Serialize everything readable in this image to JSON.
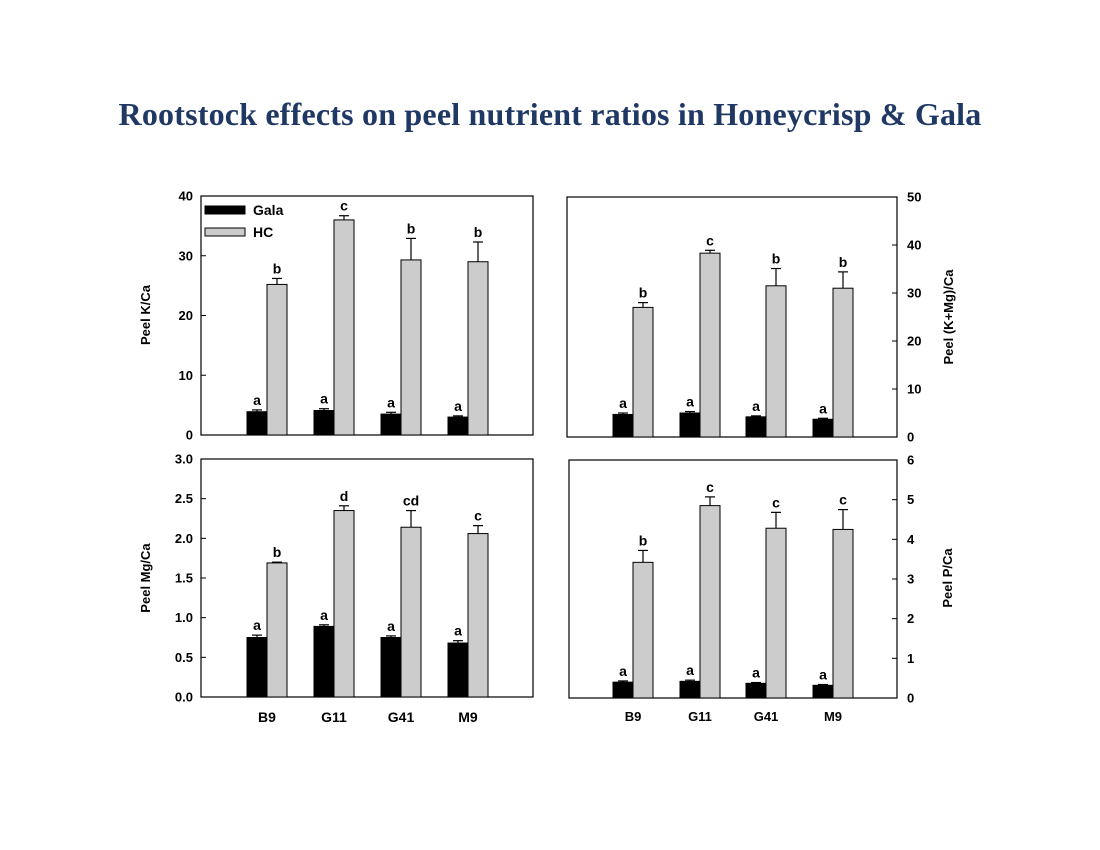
{
  "slide": {
    "title": "Rootstock effects on peel nutrient ratios in Honeycrisp & Gala"
  },
  "colors": {
    "gala": "#000000",
    "hc": "#cccccc",
    "title": "#1f3864"
  },
  "chart_data": [
    {
      "type": "bar",
      "ylabel": "Peel K/Ca",
      "ylim": [
        0,
        40
      ],
      "yticks": [
        "0",
        "10",
        "20",
        "30",
        "40"
      ],
      "categories": [
        "B9",
        "G11",
        "G41",
        "M9"
      ],
      "legend": [
        "Gala",
        "HC"
      ],
      "legend_position": "top-left",
      "axis_side": "left",
      "series": [
        {
          "name": "Gala",
          "values": [
            3.9,
            4.1,
            3.5,
            3.0
          ],
          "errors": [
            0.3,
            0.3,
            0.3,
            0.2
          ],
          "letters": [
            "a",
            "a",
            "a",
            "a"
          ]
        },
        {
          "name": "HC",
          "values": [
            25.2,
            36.0,
            29.3,
            29.0
          ],
          "errors": [
            1.0,
            0.7,
            3.6,
            3.3
          ],
          "letters": [
            "b",
            "c",
            "b",
            "b"
          ]
        }
      ]
    },
    {
      "type": "bar",
      "ylabel": "Peel (K+Mg)/Ca",
      "ylim": [
        0,
        50
      ],
      "yticks": [
        "0",
        "10",
        "20",
        "30",
        "40",
        "50"
      ],
      "categories": [
        "B9",
        "G11",
        "G41",
        "M9"
      ],
      "axis_side": "right",
      "series": [
        {
          "name": "Gala",
          "values": [
            4.7,
            5.0,
            4.2,
            3.7
          ],
          "errors": [
            0.3,
            0.3,
            0.2,
            0.2
          ],
          "letters": [
            "a",
            "a",
            "a",
            "a"
          ]
        },
        {
          "name": "HC",
          "values": [
            27.0,
            38.3,
            31.5,
            31.0
          ],
          "errors": [
            1.0,
            0.6,
            3.6,
            3.4
          ],
          "letters": [
            "b",
            "c",
            "b",
            "b"
          ]
        }
      ]
    },
    {
      "type": "bar",
      "ylabel": "Peel Mg/Ca",
      "ylim": [
        0,
        3.0
      ],
      "yticks": [
        "0.0",
        "0.5",
        "1.0",
        "1.5",
        "2.0",
        "2.5",
        "3.0"
      ],
      "categories": [
        "B9",
        "G11",
        "G41",
        "M9"
      ],
      "axis_side": "left",
      "series": [
        {
          "name": "Gala",
          "values": [
            0.75,
            0.89,
            0.75,
            0.68
          ],
          "errors": [
            0.03,
            0.02,
            0.02,
            0.03
          ],
          "letters": [
            "a",
            "a",
            "a",
            "a"
          ]
        },
        {
          "name": "HC",
          "values": [
            1.69,
            2.35,
            2.14,
            2.06
          ],
          "errors": [
            0.01,
            0.06,
            0.21,
            0.1
          ],
          "letters": [
            "b",
            "d",
            "cd",
            "c"
          ]
        }
      ]
    },
    {
      "type": "bar",
      "ylabel": "Peel P/Ca",
      "ylim": [
        0,
        6
      ],
      "yticks": [
        "0",
        "1",
        "2",
        "3",
        "4",
        "5",
        "6"
      ],
      "categories": [
        "B9",
        "G11",
        "G41",
        "M9"
      ],
      "axis_side": "right",
      "series": [
        {
          "name": "Gala",
          "values": [
            0.4,
            0.42,
            0.37,
            0.32
          ],
          "errors": [
            0.03,
            0.03,
            0.02,
            0.02
          ],
          "letters": [
            "a",
            "a",
            "a",
            "a"
          ]
        },
        {
          "name": "HC",
          "values": [
            3.42,
            4.85,
            4.28,
            4.25
          ],
          "errors": [
            0.3,
            0.22,
            0.4,
            0.5
          ],
          "letters": [
            "b",
            "c",
            "c",
            "c"
          ]
        }
      ]
    }
  ]
}
